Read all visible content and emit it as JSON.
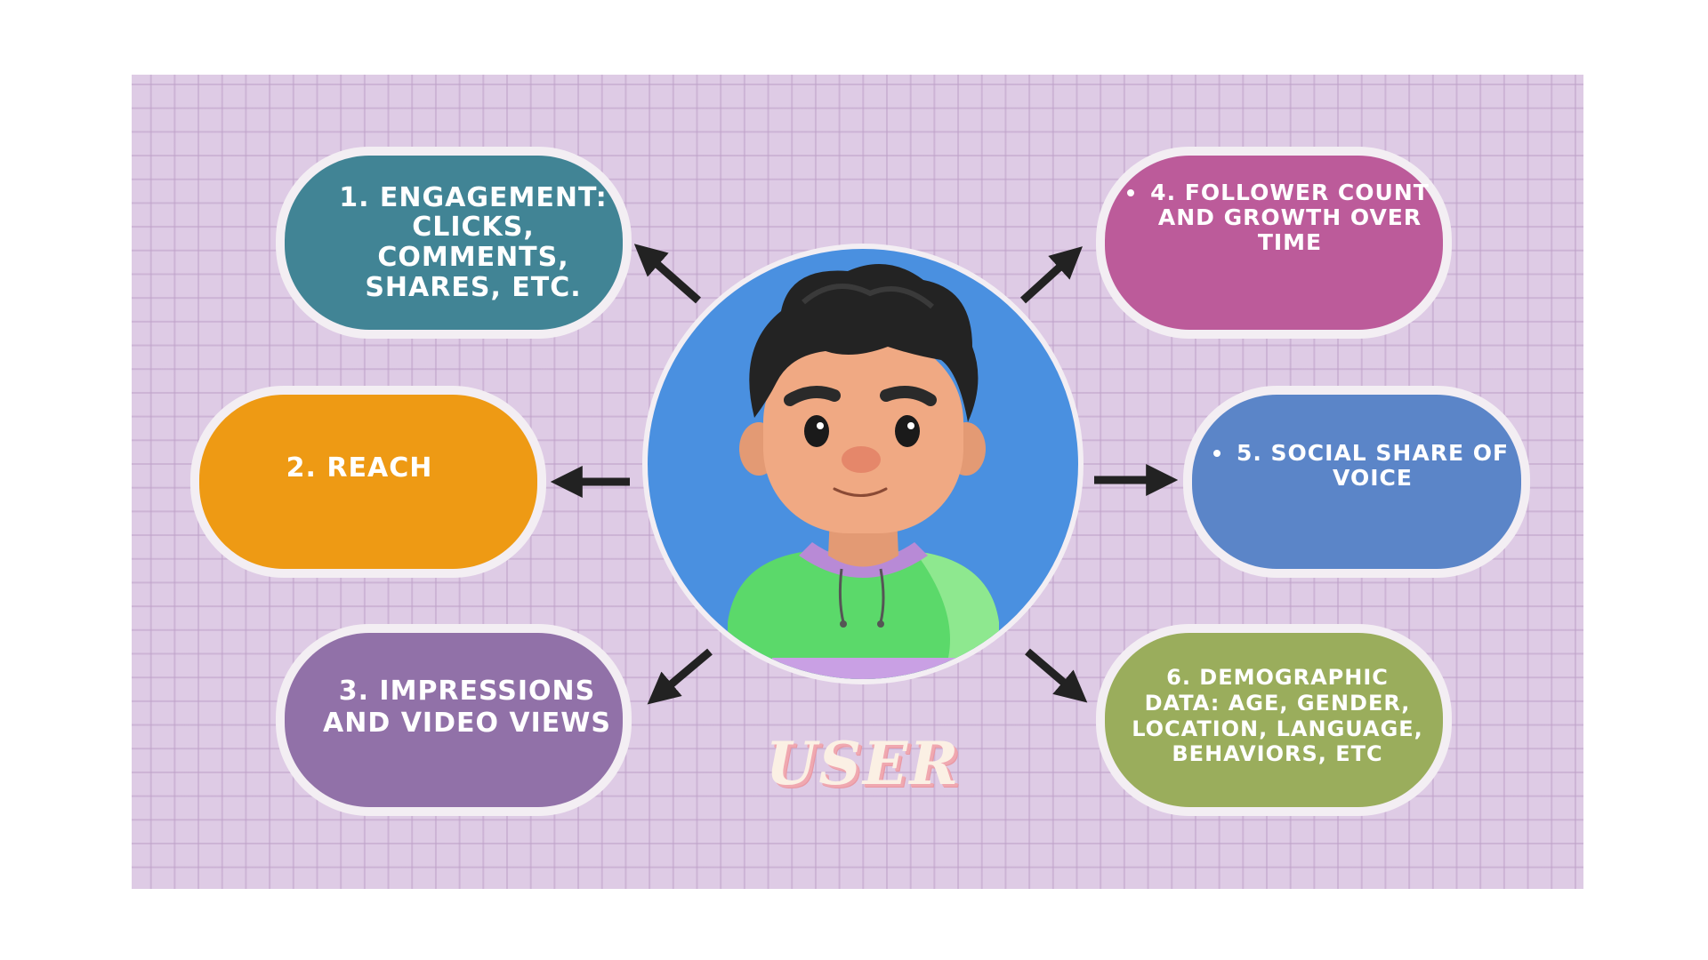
{
  "diagram": {
    "center_label": "USER",
    "boxes": [
      {
        "id": "engagement",
        "text": "1. ENGAGEMENT:\nCLICKS,\nCOMMENTS,\nSHARES, ETC.",
        "color": "#418495",
        "bulleted": false
      },
      {
        "id": "reach",
        "text": "2. REACH",
        "color": "#ee9a14",
        "bulleted": false
      },
      {
        "id": "impressions",
        "text": "3. IMPRESSIONS\nAND VIDEO VIEWS",
        "color": "#9171a8",
        "bulleted": false
      },
      {
        "id": "follower",
        "text": "4. FOLLOWER COUNT\nAND GROWTH OVER\nTIME",
        "color": "#bc5b9a",
        "bulleted": true
      },
      {
        "id": "social",
        "text": "5. SOCIAL SHARE OF\nVOICE",
        "color": "#5b85c8",
        "bulleted": true
      },
      {
        "id": "demographic",
        "text": "6. DEMOGRAPHIC\nDATA: AGE, GENDER,\nLOCATION, LANGUAGE,\nBEHAVIORS, ETC",
        "color": "#9aad5c",
        "bulleted": false
      }
    ],
    "colors": {
      "canvas": "#decbe5",
      "center_circle": "#4a90e0",
      "arrow": "#222222"
    }
  }
}
